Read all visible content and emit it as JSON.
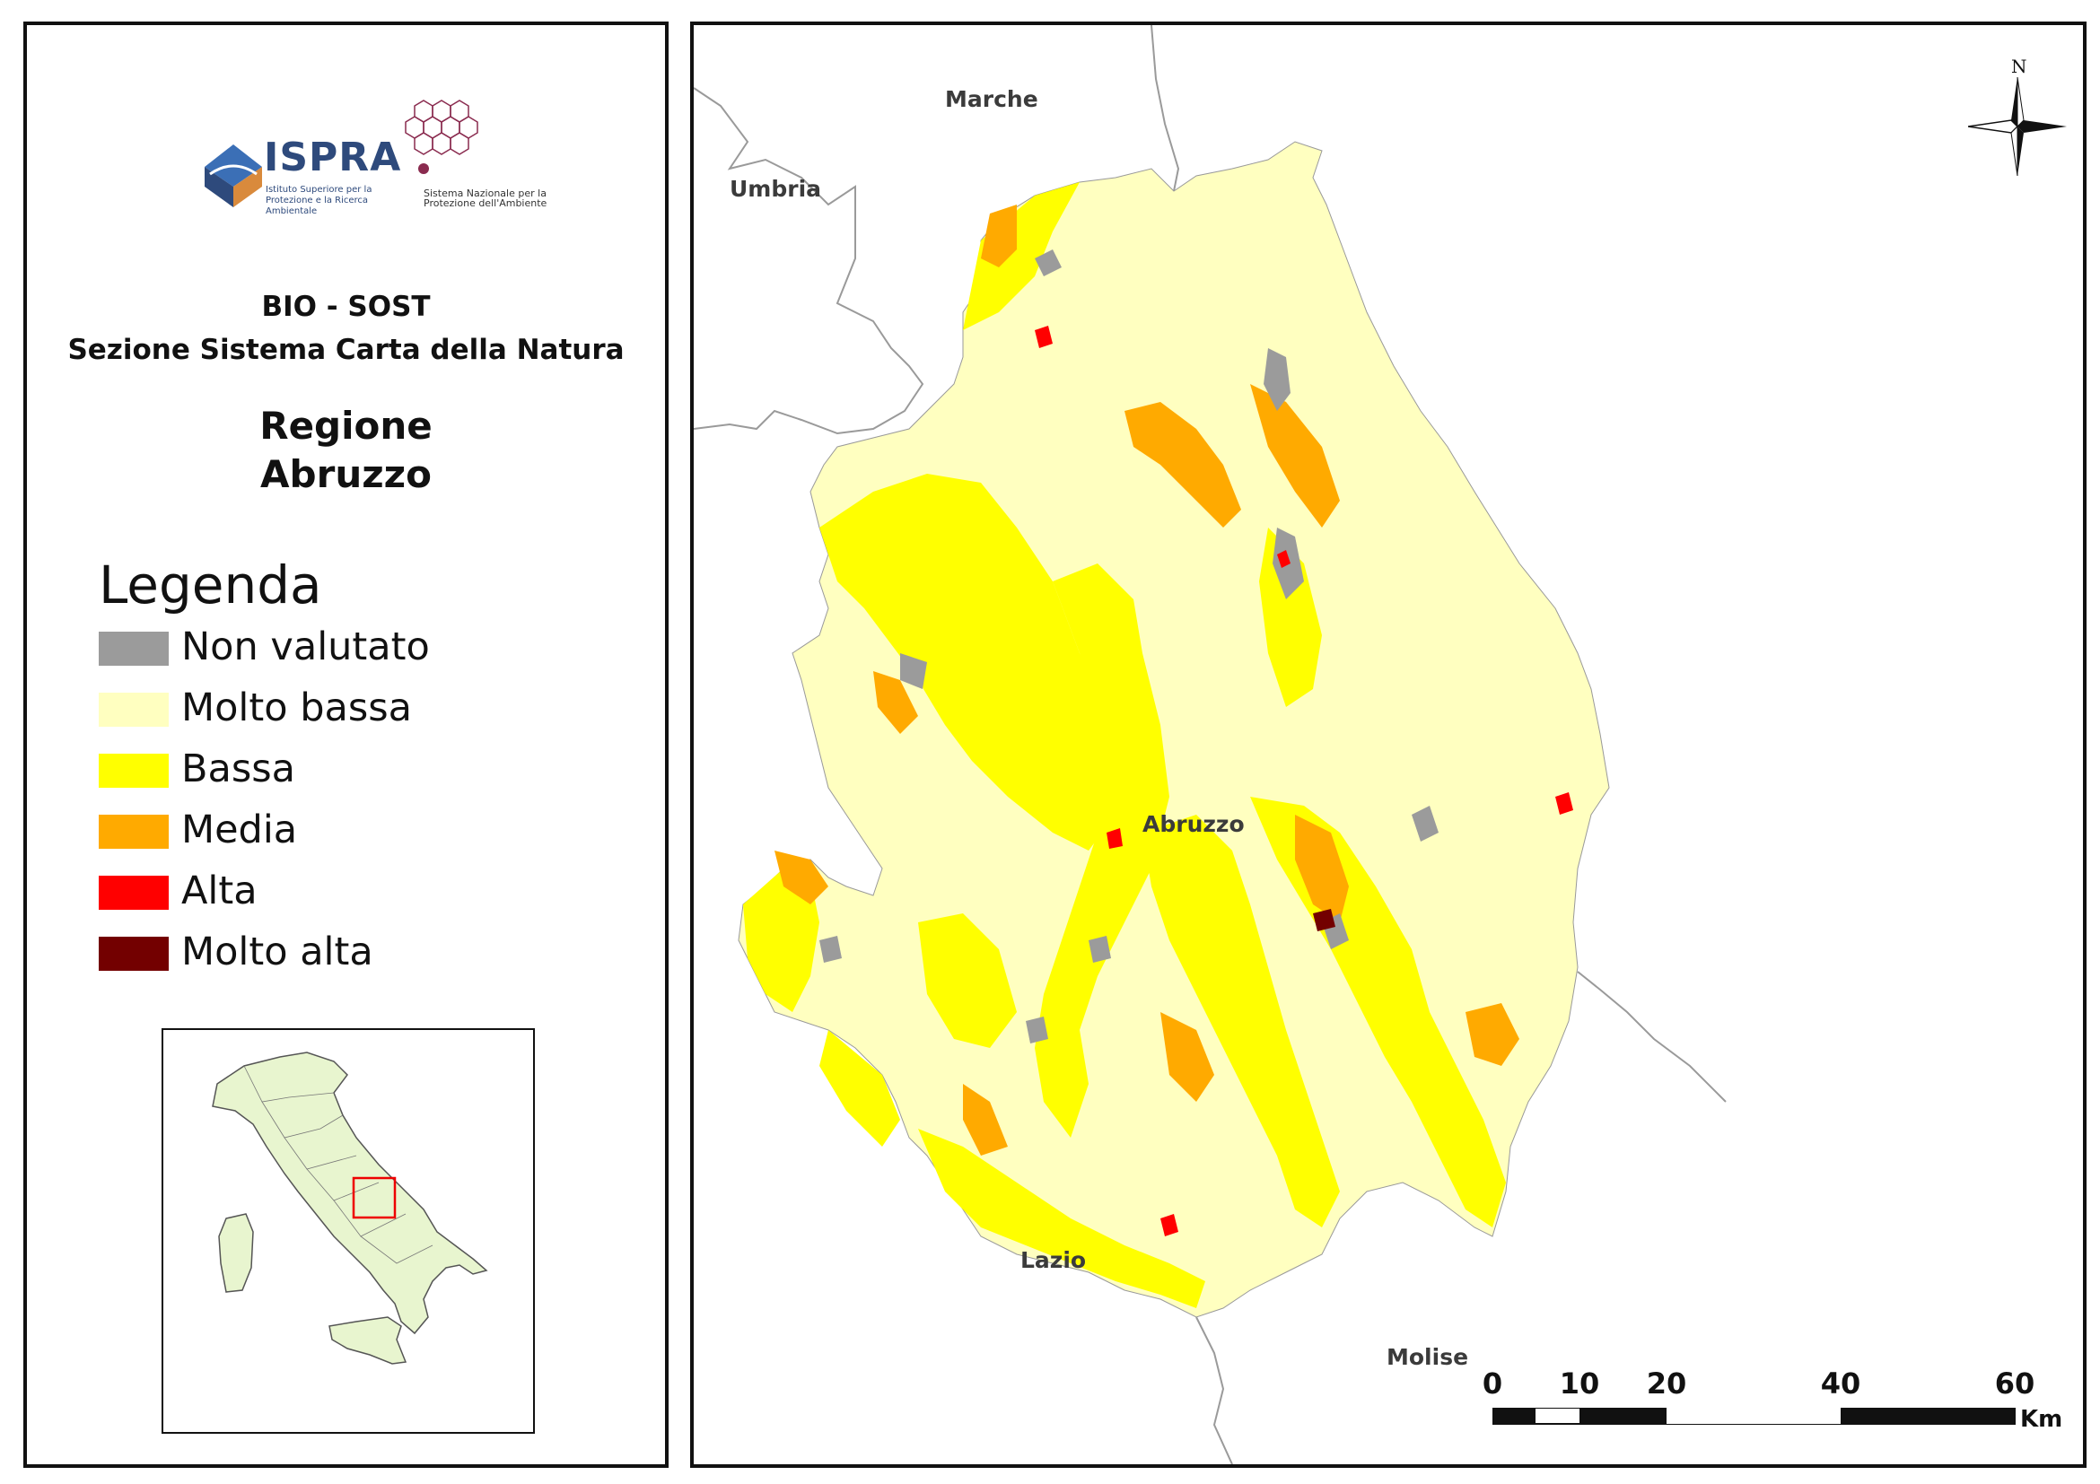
{
  "logo": {
    "ispra_name": "ISPRA",
    "ispra_subtitle": "Istituto Superiore per la Protezione e la Ricerca Ambientale",
    "snpa_subtitle": "Sistema Nazionale per la Protezione dell'Ambiente"
  },
  "header": {
    "line1": "BIO - SOST",
    "line2": "Sezione Sistema Carta della Natura"
  },
  "region": {
    "line1": "Regione",
    "line2": "Abruzzo"
  },
  "legend": {
    "title": "Legenda",
    "items": [
      {
        "label": "Non valutato",
        "color": "#9b9b9b"
      },
      {
        "label": "Molto bassa",
        "color": "#ffffc0"
      },
      {
        "label": "Bassa",
        "color": "#ffff00"
      },
      {
        "label": "Media",
        "color": "#ffaa00"
      },
      {
        "label": "Alta",
        "color": "#ff0000"
      },
      {
        "label": "Molto alta",
        "color": "#730000"
      }
    ]
  },
  "map": {
    "labels": {
      "marche": "Marche",
      "umbria": "Umbria",
      "abruzzo": "Abruzzo",
      "lazio": "Lazio",
      "molise": "Molise"
    },
    "north_label": "N"
  },
  "scale_bar": {
    "ticks": [
      "0",
      "10",
      "20",
      "40",
      "60"
    ],
    "unit": "Km"
  }
}
